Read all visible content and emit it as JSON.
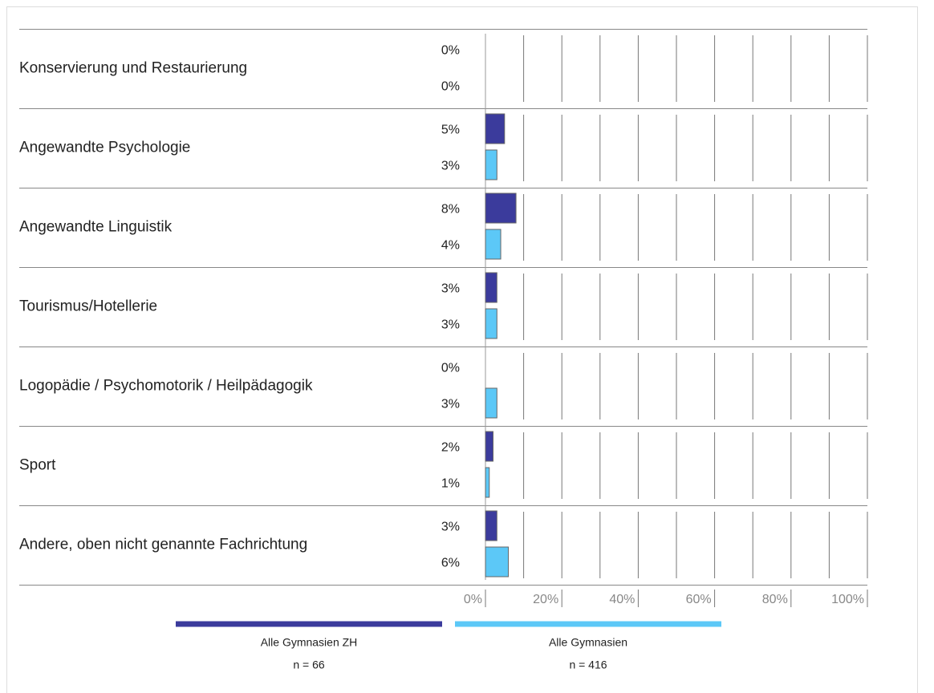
{
  "chart_data": {
    "type": "bar",
    "orientation": "horizontal",
    "categories": [
      "Konservierung und Restaurierung",
      "Angewandte Psychologie",
      "Angewandte Linguistik",
      "Tourismus/Hotellerie",
      "Logopädie / Psychomotorik / Heilpädagogik",
      "Sport",
      "Andere, oben nicht genannte Fachrichtung"
    ],
    "series": [
      {
        "name": "Alle Gymnasien ZH",
        "n": "n = 66",
        "color": "#3b3b9c",
        "values": [
          0,
          5,
          8,
          3,
          0,
          2,
          3
        ],
        "value_labels": [
          "0%",
          "5%",
          "8%",
          "3%",
          "0%",
          "2%",
          "3%"
        ]
      },
      {
        "name": "Alle Gymnasien",
        "n": "n = 416",
        "color": "#5cc8f7",
        "values": [
          0,
          3,
          4,
          3,
          3,
          1,
          6
        ],
        "value_labels": [
          "0%",
          "3%",
          "4%",
          "3%",
          "3%",
          "1%",
          "6%"
        ]
      }
    ],
    "xlim": [
      0,
      100
    ],
    "xticks": [
      {
        "value": 0,
        "label": "0%"
      },
      {
        "value": 20,
        "label": "20%"
      },
      {
        "value": 40,
        "label": "40%"
      },
      {
        "value": 60,
        "label": "60%"
      },
      {
        "value": 80,
        "label": "80%"
      },
      {
        "value": 100,
        "label": "100%"
      }
    ],
    "minor_xticks": [
      10,
      30,
      50,
      70,
      90
    ],
    "grid": true
  }
}
